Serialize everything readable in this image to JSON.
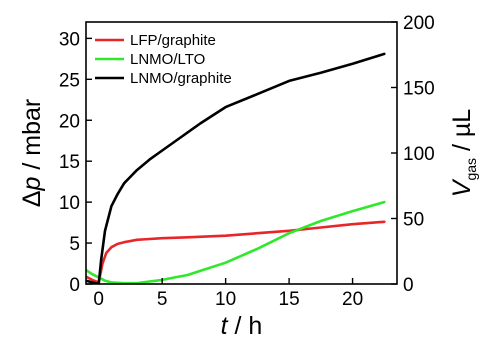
{
  "chart_data": {
    "type": "line",
    "xlabel": {
      "var": "t",
      "unit": " / h"
    },
    "ylabel_left": {
      "prefix": "Δ",
      "var": "p",
      "unit": " / mbar"
    },
    "ylabel_right": {
      "var": "V",
      "sub": "gas",
      "unit": " / µL"
    },
    "xlim": [
      -1,
      23.5
    ],
    "ylim_left": [
      0,
      32
    ],
    "ylim_right": [
      0,
      200
    ],
    "xticks": [
      0,
      5,
      10,
      15,
      20
    ],
    "yticks_left": [
      0,
      5,
      10,
      15,
      20,
      25,
      30
    ],
    "yticks_right": [
      0,
      50,
      100,
      150,
      200
    ],
    "grid": false,
    "legend_position": "top-left",
    "colors": {
      "LFP/graphite": "#e8262a",
      "LNMO/LTO": "#2fe82b",
      "LNMO/graphite": "#000000"
    },
    "series": [
      {
        "name": "LFP/graphite",
        "x": [
          -1,
          -0.5,
          0,
          0.3,
          0.6,
          1,
          1.5,
          2,
          3,
          4,
          5,
          7,
          10,
          12.5,
          15,
          17.5,
          20,
          22.5
        ],
        "y": [
          0.9,
          0.5,
          0.2,
          2.5,
          3.8,
          4.5,
          4.9,
          5.1,
          5.4,
          5.5,
          5.6,
          5.7,
          5.9,
          6.2,
          6.5,
          6.9,
          7.3,
          7.6
        ]
      },
      {
        "name": "LNMO/LTO",
        "x": [
          -1,
          -0.5,
          0,
          0.5,
          1,
          2,
          3,
          4,
          5,
          6,
          7,
          8,
          10,
          12.5,
          15,
          17.5,
          20,
          22.5
        ],
        "y": [
          1.7,
          1.2,
          0.8,
          0.4,
          0.2,
          0.1,
          0.1,
          0.3,
          0.5,
          0.8,
          1.1,
          1.6,
          2.6,
          4.3,
          6.2,
          7.7,
          8.9,
          10.0
        ]
      },
      {
        "name": "LNMO/graphite",
        "x": [
          -1,
          -0.5,
          0,
          0.2,
          0.5,
          1,
          1.5,
          2,
          3,
          4,
          5,
          6,
          8,
          10,
          12.5,
          15,
          17.5,
          20,
          22.5
        ],
        "y": [
          0.4,
          0.2,
          0.0,
          3.0,
          6.5,
          9.5,
          11.0,
          12.3,
          13.9,
          15.2,
          16.3,
          17.4,
          19.6,
          21.6,
          23.2,
          24.8,
          25.8,
          26.9,
          28.1
        ]
      }
    ]
  }
}
